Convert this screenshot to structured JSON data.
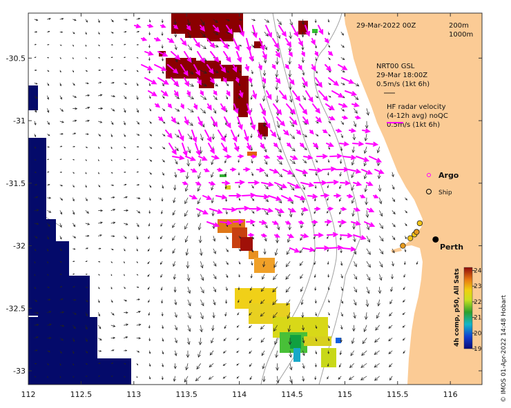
{
  "chart_data": {
    "type": "map",
    "title": "29-Mar-2022 00Z",
    "xlim": [
      112,
      116.3
    ],
    "ylim": [
      -33.11,
      -30.14
    ],
    "x_ticks": [
      112,
      112.5,
      113,
      113.5,
      114,
      114.5,
      115,
      115.5,
      116
    ],
    "x_tick_labels": [
      "112",
      "112.5",
      "113",
      "113.5",
      "114",
      "114.5",
      "115",
      "115.5",
      "116"
    ],
    "y_ticks": [
      -30.5,
      -31,
      -31.5,
      -32,
      -32.5,
      -33
    ],
    "y_tick_labels": [
      "-30.5",
      "-31",
      "-31.5",
      "-32",
      "-32.5",
      "-33"
    ],
    "isobaths": [
      "200m",
      "1000m"
    ],
    "gsl_label": {
      "line1": "NRT00 GSL",
      "line2": "29-Mar 18:00Z",
      "line3": "0.5m/s (1kt 6h)"
    },
    "hf_label": {
      "line1": "HF radar velocity",
      "line2": "(4-12h avg) noQC",
      "line3": "0.5m/s (1kt 6h)"
    },
    "legend": {
      "argo": "Argo",
      "ship": "Ship"
    },
    "city": {
      "name": "Perth",
      "lon": 115.86,
      "lat": -31.95
    },
    "ships": [
      {
        "lon": 115.55,
        "lat": -32.0,
        "color": "#e69a1e"
      },
      {
        "lon": 115.62,
        "lat": -31.94,
        "color": "#f2c418"
      },
      {
        "lon": 115.66,
        "lat": -31.91,
        "color": "#f2c418"
      },
      {
        "lon": 115.68,
        "lat": -31.89,
        "color": "#f2c418"
      },
      {
        "lon": 115.71,
        "lat": -31.82,
        "color": "#f2c418"
      },
      {
        "lon": 115.68,
        "lat": -31.89,
        "color": "#e69a1e"
      }
    ],
    "colorbar": {
      "label": "4h comp, p50, All Sats",
      "range": [
        19,
        24.2
      ],
      "ticks": [
        "24",
        "23",
        "22",
        "21",
        "20",
        "19"
      ]
    },
    "credit": "© IMOS 01-Apr-2022 14:48 Hobart"
  }
}
